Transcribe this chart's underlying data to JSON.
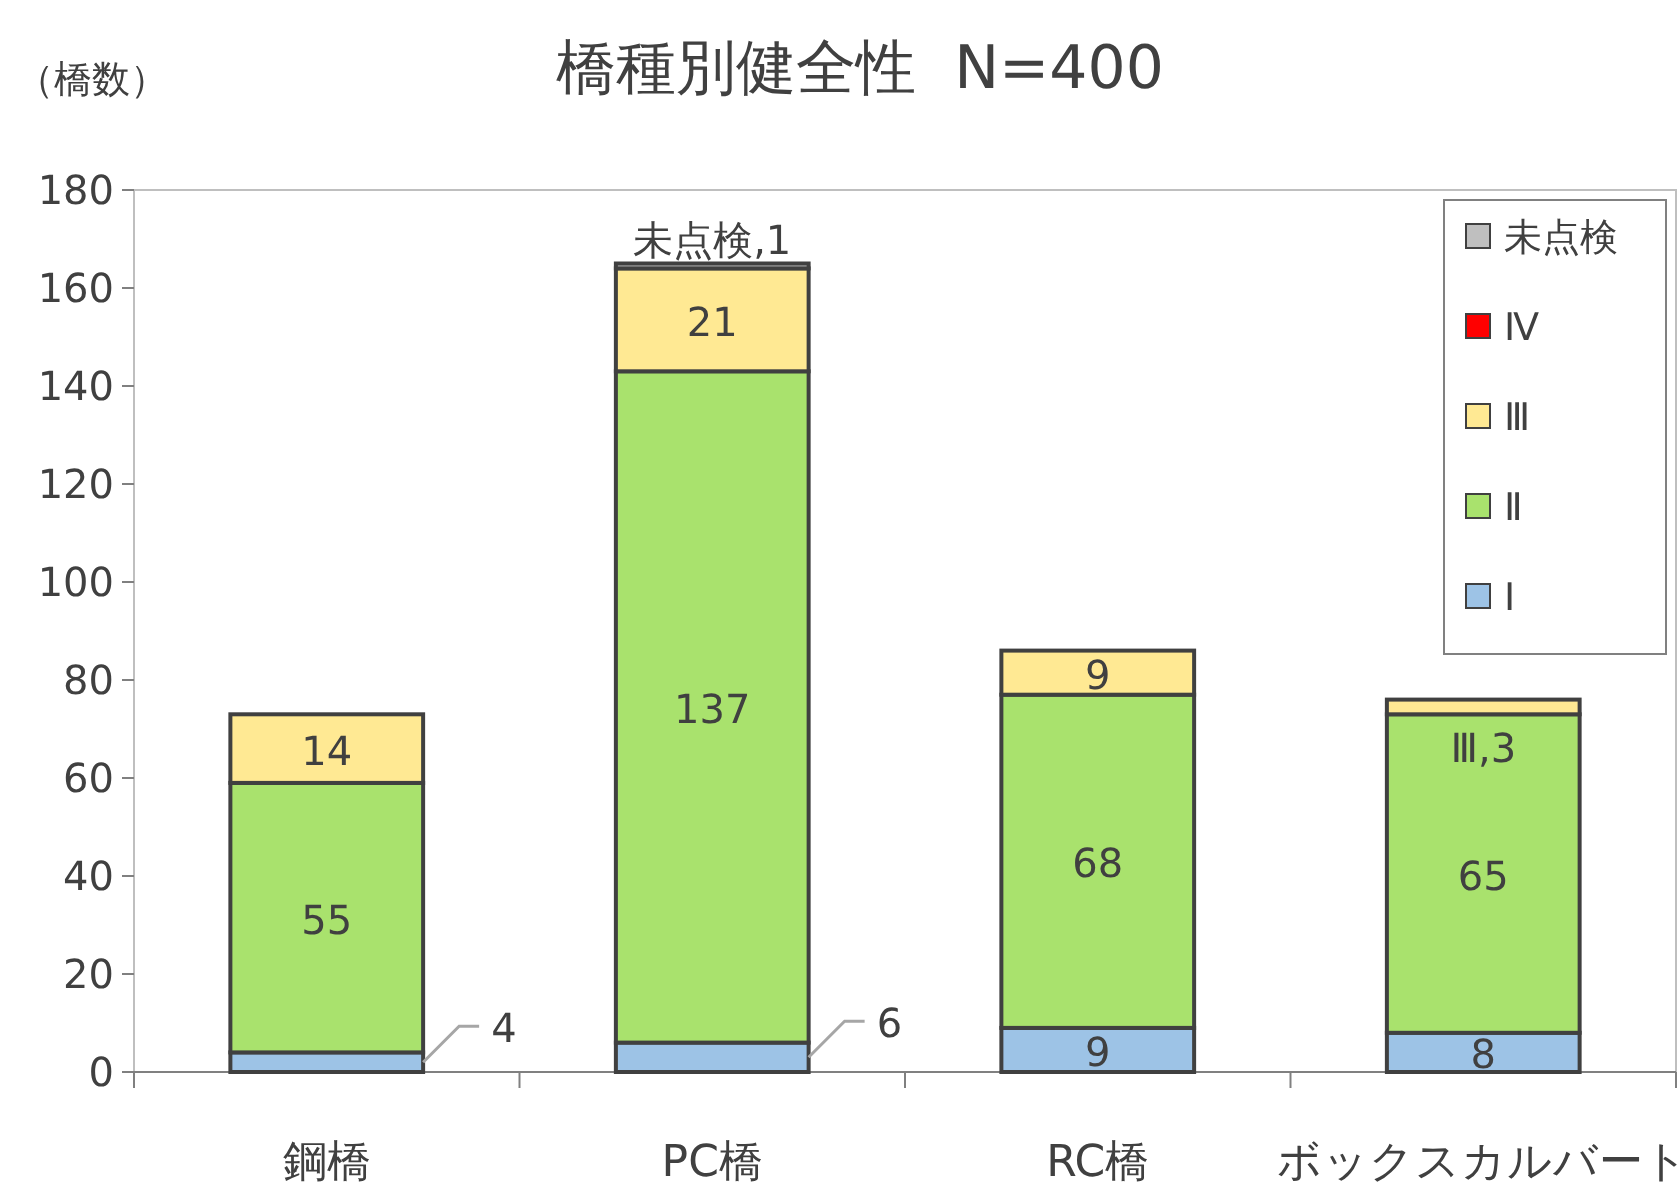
{
  "chart_data": {
    "type": "bar",
    "stacked": true,
    "title": "橋種別健全性  N=400",
    "ylabel": "（橋数）",
    "categories": [
      "鋼橋",
      "PC橋",
      "RC橋",
      "ボックスカルバート"
    ],
    "ylim": [
      0,
      180
    ],
    "yticks": [
      0,
      20,
      40,
      60,
      80,
      100,
      120,
      140,
      160,
      180
    ],
    "grid": false,
    "legend": "top right",
    "series": [
      {
        "name": "Ⅰ",
        "color": "#9dc3e6",
        "values": [
          4,
          6,
          9,
          8
        ],
        "value_labels": [
          "4",
          "6",
          "9",
          "8"
        ]
      },
      {
        "name": "Ⅱ",
        "color": "#a9e26d",
        "values": [
          55,
          137,
          68,
          65
        ],
        "value_labels": [
          "55",
          "137",
          "68",
          "65"
        ]
      },
      {
        "name": "Ⅲ",
        "color": "#ffe993",
        "values": [
          14,
          21,
          9,
          3
        ],
        "value_labels": [
          "14",
          "21",
          "9",
          "Ⅲ,3"
        ]
      },
      {
        "name": "Ⅳ",
        "color": "#ff0000",
        "values": [
          0,
          0,
          0,
          0
        ]
      },
      {
        "name": "未点検",
        "color": "#bfbfbf",
        "values": [
          0,
          1,
          0,
          0
        ],
        "value_labels": [
          null,
          "未点検,1",
          null,
          null
        ]
      }
    ]
  }
}
